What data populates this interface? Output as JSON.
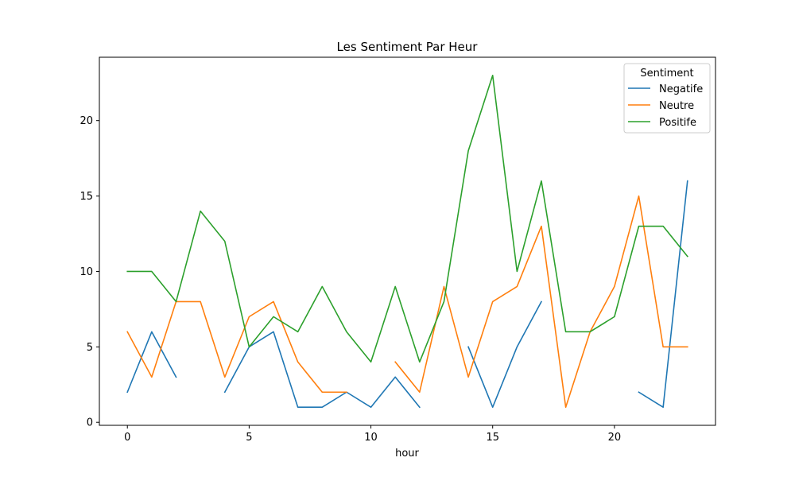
{
  "chart_data": {
    "type": "line",
    "title": "Les Sentiment Par Heur",
    "xlabel": "hour",
    "ylabel": "",
    "xlim": [
      -1.15,
      24.15
    ],
    "ylim": [
      -0.2,
      24.2
    ],
    "xticks": [
      0,
      5,
      10,
      15,
      20
    ],
    "yticks": [
      0,
      5,
      10,
      15,
      20
    ],
    "grid": false,
    "legend": {
      "title": "Sentiment",
      "placement": "top-right"
    },
    "x": [
      0,
      1,
      2,
      3,
      4,
      5,
      6,
      7,
      8,
      9,
      10,
      11,
      12,
      13,
      14,
      15,
      16,
      17,
      18,
      19,
      20,
      21,
      22,
      23
    ],
    "series": [
      {
        "name": "Negatife",
        "color": "#1f77b4",
        "values": [
          2,
          6,
          3,
          null,
          2,
          5,
          6,
          1,
          1,
          2,
          1,
          3,
          1,
          null,
          5,
          1,
          5,
          8,
          null,
          null,
          null,
          2,
          1,
          16
        ]
      },
      {
        "name": "Neutre",
        "color": "#ff7f0e",
        "values": [
          6,
          3,
          8,
          8,
          3,
          7,
          8,
          4,
          2,
          2,
          null,
          4,
          2,
          9,
          3,
          8,
          9,
          13,
          1,
          6,
          9,
          15,
          5,
          5
        ]
      },
      {
        "name": "Positife",
        "color": "#2ca02c",
        "values": [
          10,
          10,
          8,
          14,
          12,
          5,
          7,
          6,
          9,
          6,
          4,
          9,
          4,
          8,
          18,
          23,
          10,
          16,
          6,
          6,
          7,
          13,
          13,
          11
        ]
      }
    ]
  }
}
